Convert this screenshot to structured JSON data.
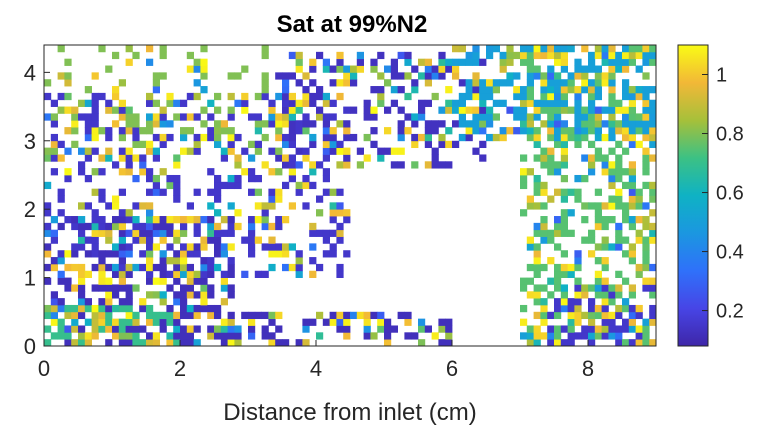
{
  "chart_data": {
    "type": "heatmap",
    "title": "Sat at 99%N2",
    "xlabel": "Distance from inlet (cm)",
    "ylabel": "",
    "xlim": [
      0,
      9
    ],
    "ylim": [
      0,
      4.4
    ],
    "xticks": [
      0,
      2,
      4,
      6,
      8
    ],
    "yticks": [
      0,
      1,
      2,
      3,
      4
    ],
    "colorbar": {
      "colormap": "parula",
      "range": [
        0.08,
        1.1
      ],
      "ticks": [
        0.2,
        0.4,
        0.6,
        0.8,
        1
      ]
    },
    "grid": false,
    "missing_values_color": "#ffffff",
    "regions": [
      {
        "desc": "dense low saturation, lower-left",
        "x": [
          0.0,
          2.8
        ],
        "y": [
          0.0,
          1.9
        ],
        "value": 0.12,
        "density": 0.6
      },
      {
        "desc": "diagonal band",
        "x": [
          0.0,
          4.5
        ],
        "y": [
          1.0,
          3.7
        ],
        "value": 0.15,
        "density": 0.35
      },
      {
        "desc": "mixed near inlet bottom",
        "x": [
          0.0,
          2.0
        ],
        "y": [
          0.0,
          0.6
        ],
        "value": 0.7,
        "density": 0.45
      },
      {
        "desc": "bottom strip",
        "x": [
          2.6,
          6.0
        ],
        "y": [
          0.0,
          0.5
        ],
        "value": 0.12,
        "density": 0.45
      },
      {
        "desc": "upper center cluster",
        "x": [
          3.4,
          6.5
        ],
        "y": [
          2.6,
          4.3
        ],
        "value": 0.13,
        "density": 0.35
      },
      {
        "desc": "right side mixed",
        "x": [
          7.0,
          9.0
        ],
        "y": [
          0.0,
          4.4
        ],
        "value": 0.75,
        "density": 0.45
      },
      {
        "desc": "top-right dense",
        "x": [
          6.0,
          9.0
        ],
        "y": [
          3.0,
          4.4
        ],
        "value": 0.5,
        "density": 0.5
      },
      {
        "desc": "scattered top-left",
        "x": [
          0.0,
          3.5
        ],
        "y": [
          2.8,
          4.4
        ],
        "value": 0.8,
        "density": 0.15
      },
      {
        "desc": "lower right low values",
        "x": [
          7.2,
          9.0
        ],
        "y": [
          0.0,
          0.9
        ],
        "value": 0.15,
        "density": 0.4
      }
    ]
  }
}
